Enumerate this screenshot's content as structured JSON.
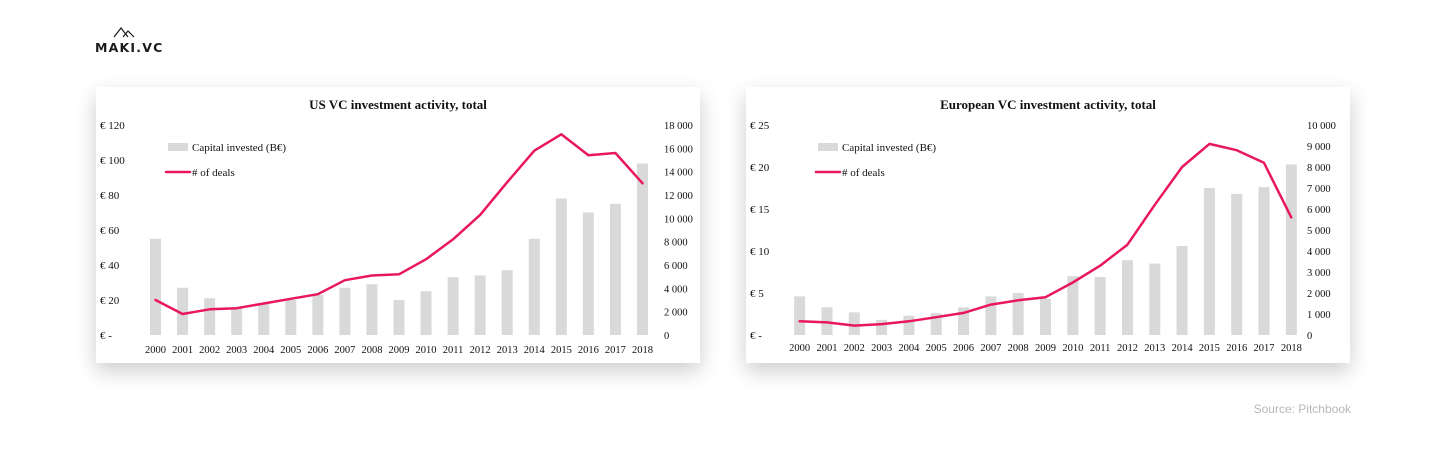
{
  "logo": {
    "icon": "maki-roof-icon",
    "text": "MAKI.VC"
  },
  "source": "Source: Pitchbook",
  "colors": {
    "bar": "#d9d9d9",
    "line": "#e8185a",
    "text": "#111111"
  },
  "chart_data": [
    {
      "type": "bar+line",
      "title": "US VC investment activity, total",
      "categories": [
        "2000",
        "2001",
        "2002",
        "2003",
        "2004",
        "2005",
        "2006",
        "2007",
        "2008",
        "2009",
        "2010",
        "2011",
        "2012",
        "2013",
        "2014",
        "2015",
        "2016",
        "2017",
        "2018"
      ],
      "series": [
        {
          "name": "Capital invested (B€)",
          "type": "bar",
          "axis": "left",
          "values": [
            55,
            27,
            21,
            16,
            18,
            20,
            23,
            27,
            29,
            20,
            25,
            33,
            34,
            37,
            55,
            78,
            70,
            75,
            98
          ]
        },
        {
          "name": "# of deals",
          "type": "line",
          "axis": "right",
          "values": [
            3000,
            1800,
            2200,
            2300,
            2700,
            3100,
            3500,
            4700,
            5100,
            5200,
            6500,
            8200,
            10300,
            13100,
            15800,
            17200,
            15400,
            15600,
            13000
          ]
        }
      ],
      "ylim_left": [
        0,
        120
      ],
      "yticks_left": [
        "€ -",
        "€ 20",
        "€ 40",
        "€ 60",
        "€ 80",
        "€ 100",
        "€ 120"
      ],
      "ylim_right": [
        0,
        18000
      ],
      "yticks_right": [
        "0",
        "2 000",
        "4 000",
        "6 000",
        "8 000",
        "10 000",
        "12 000",
        "14 000",
        "16 000",
        "18 000"
      ],
      "legend_position": "top-left",
      "grid": false
    },
    {
      "type": "bar+line",
      "title": "European VC investment activity, total",
      "categories": [
        "2000",
        "2001",
        "2002",
        "2003",
        "2004",
        "2005",
        "2006",
        "2007",
        "2008",
        "2009",
        "2010",
        "2011",
        "2012",
        "2013",
        "2014",
        "2015",
        "2016",
        "2017",
        "2018"
      ],
      "series": [
        {
          "name": "Capital invested (B€)",
          "type": "bar",
          "axis": "left",
          "values": [
            4.6,
            3.3,
            2.7,
            1.8,
            2.3,
            2.6,
            3.3,
            4.6,
            5.0,
            4.3,
            7.0,
            6.9,
            8.9,
            8.5,
            10.6,
            17.5,
            16.8,
            17.6,
            20.3
          ]
        },
        {
          "name": "# of deals",
          "type": "line",
          "axis": "right",
          "values": [
            650,
            600,
            450,
            520,
            650,
            850,
            1050,
            1450,
            1650,
            1800,
            2500,
            3300,
            4300,
            6200,
            8000,
            9100,
            8800,
            8200,
            5600
          ]
        }
      ],
      "ylim_left": [
        0,
        25
      ],
      "yticks_left": [
        "€ -",
        "€ 5",
        "€ 10",
        "€ 15",
        "€ 20",
        "€ 25"
      ],
      "ylim_right": [
        0,
        10000
      ],
      "yticks_right": [
        "0",
        "1 000",
        "2 000",
        "3 000",
        "4 000",
        "5 000",
        "6 000",
        "7 000",
        "8 000",
        "9 000",
        "10 000"
      ],
      "legend_position": "top-left",
      "grid": false
    }
  ]
}
